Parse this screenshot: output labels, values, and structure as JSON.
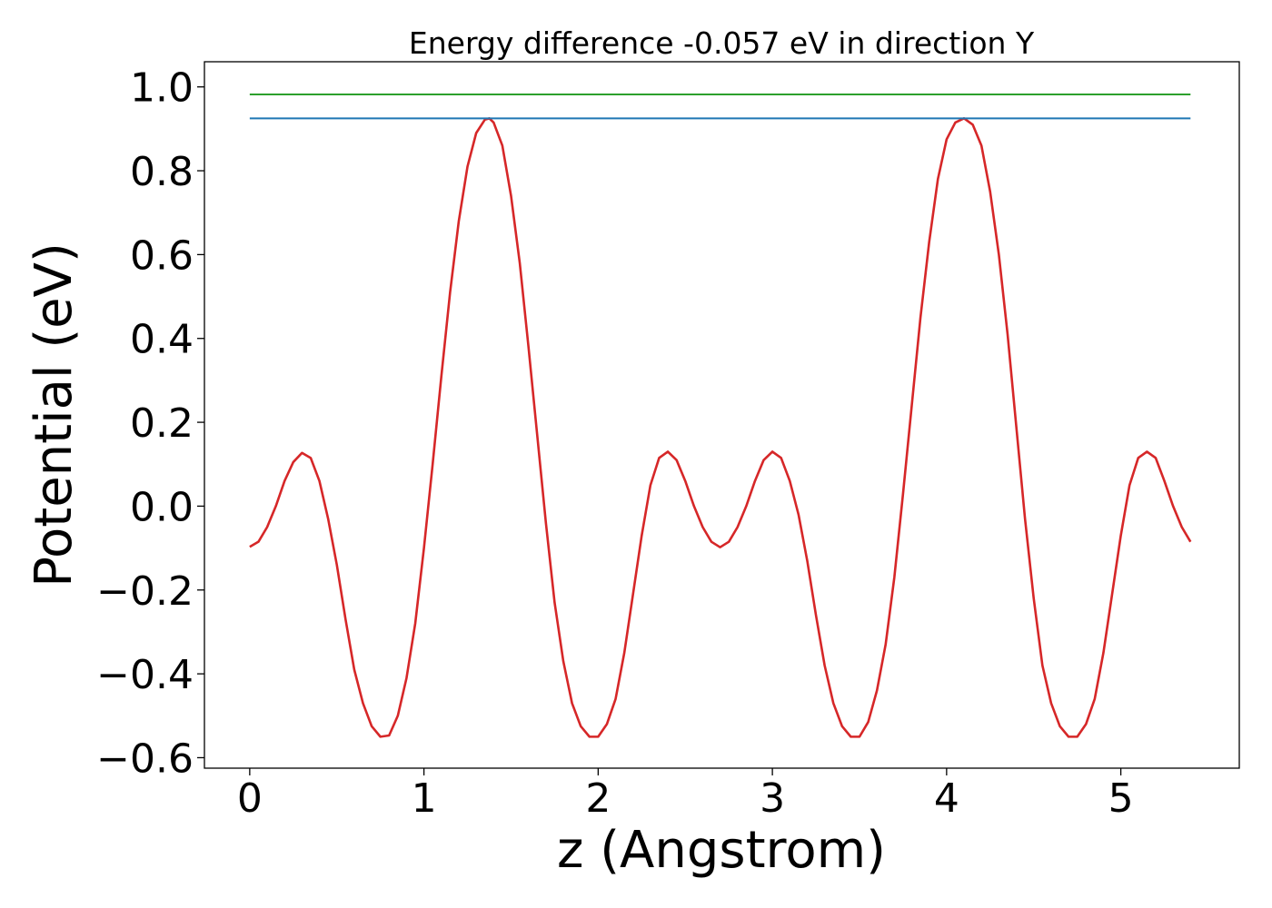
{
  "chart_data": {
    "type": "line",
    "title": "Energy difference -0.057 eV in direction Y",
    "xlabel": "z (Angstrom)",
    "ylabel": "Potential (eV)",
    "xlim": [
      -0.26,
      5.68
    ],
    "ylim": [
      -0.625,
      1.06
    ],
    "grid": false,
    "legend": "none",
    "x_ticks": [
      0,
      1,
      2,
      3,
      4,
      5
    ],
    "x_tick_labels": [
      "0",
      "1",
      "2",
      "3",
      "4",
      "5"
    ],
    "y_ticks": [
      -0.6,
      -0.4,
      -0.2,
      0.0,
      0.2,
      0.4,
      0.6,
      0.8,
      1.0
    ],
    "y_tick_labels": [
      "−0.6",
      "−0.4",
      "−0.2",
      "0.0",
      "0.2",
      "0.4",
      "0.6",
      "0.8",
      "1.0"
    ],
    "series": [
      {
        "color": "#d62728",
        "x": [
          0.0,
          0.05,
          0.1,
          0.15,
          0.2,
          0.25,
          0.3,
          0.35,
          0.4,
          0.45,
          0.5,
          0.55,
          0.6,
          0.65,
          0.7,
          0.75,
          0.8,
          0.85,
          0.9,
          0.95,
          1.0,
          1.05,
          1.1,
          1.15,
          1.2,
          1.25,
          1.3,
          1.35,
          1.375,
          1.4,
          1.45,
          1.5,
          1.55,
          1.6,
          1.65,
          1.7,
          1.75,
          1.8,
          1.85,
          1.9,
          1.95,
          2.0,
          2.05,
          2.1,
          2.15,
          2.2,
          2.25,
          2.3,
          2.35,
          2.4,
          2.45,
          2.5,
          2.55,
          2.6,
          2.65,
          2.7,
          2.75,
          2.8,
          2.85,
          2.9,
          2.95,
          3.0,
          3.05,
          3.1,
          3.15,
          3.2,
          3.25,
          3.3,
          3.35,
          3.4,
          3.45,
          3.5,
          3.55,
          3.6,
          3.65,
          3.7,
          3.75,
          3.8,
          3.85,
          3.9,
          3.95,
          4.0,
          4.05,
          4.1,
          4.15,
          4.2,
          4.25,
          4.3,
          4.35,
          4.4,
          4.45,
          4.5,
          4.55,
          4.6,
          4.65,
          4.7,
          4.75,
          4.8,
          4.85,
          4.9,
          4.95,
          5.0,
          5.05,
          5.1,
          5.15,
          5.2,
          5.25,
          5.3,
          5.35,
          5.4
        ],
        "y": [
          -0.097,
          -0.085,
          -0.05,
          0.0,
          0.06,
          0.105,
          0.127,
          0.115,
          0.06,
          -0.03,
          -0.14,
          -0.27,
          -0.39,
          -0.47,
          -0.525,
          -0.55,
          -0.547,
          -0.5,
          -0.41,
          -0.28,
          -0.1,
          0.1,
          0.31,
          0.51,
          0.68,
          0.81,
          0.89,
          0.922,
          0.925,
          0.915,
          0.86,
          0.74,
          0.58,
          0.38,
          0.17,
          -0.04,
          -0.23,
          -0.37,
          -0.47,
          -0.525,
          -0.55,
          -0.55,
          -0.52,
          -0.46,
          -0.35,
          -0.21,
          -0.07,
          0.05,
          0.115,
          0.13,
          0.11,
          0.06,
          0.0,
          -0.05,
          -0.085,
          -0.098,
          -0.085,
          -0.05,
          0.0,
          0.06,
          0.11,
          0.13,
          0.115,
          0.06,
          -0.02,
          -0.13,
          -0.26,
          -0.38,
          -0.47,
          -0.525,
          -0.55,
          -0.55,
          -0.515,
          -0.44,
          -0.33,
          -0.17,
          0.03,
          0.24,
          0.45,
          0.63,
          0.78,
          0.875,
          0.915,
          0.925,
          0.91,
          0.86,
          0.75,
          0.6,
          0.41,
          0.19,
          -0.03,
          -0.22,
          -0.38,
          -0.47,
          -0.525,
          -0.55,
          -0.55,
          -0.52,
          -0.46,
          -0.35,
          -0.21,
          -0.07,
          0.05,
          0.115,
          0.13,
          0.115,
          0.06,
          0.0,
          -0.05,
          -0.085
        ]
      },
      {
        "color": "#1f77b4",
        "x": [
          0.0,
          5.4
        ],
        "y": [
          0.925,
          0.925
        ]
      },
      {
        "color": "#2ca02c",
        "x": [
          0.0,
          5.4
        ],
        "y": [
          0.982,
          0.982
        ]
      }
    ]
  }
}
